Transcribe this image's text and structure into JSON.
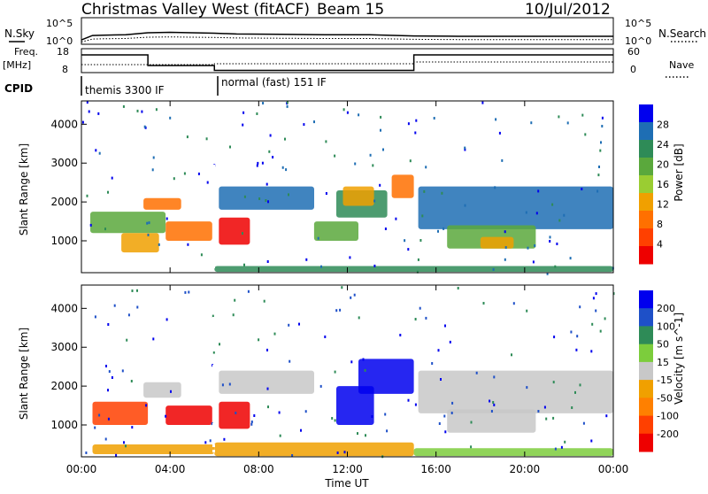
{
  "header": {
    "station": "Christmas Valley West (fitACF)",
    "beam": "Beam 15",
    "date": "10/Jul/2012"
  },
  "strip_labels": {
    "nsky": "N.Sky",
    "nsky_ticks": [
      "10^5",
      "10^0"
    ],
    "nsearch": "N.Search",
    "nsearch_ticks": [
      "10^5",
      "10^0"
    ],
    "freq": "Freq.",
    "freq_unit": "[MHz]",
    "freq_ticks": [
      "18",
      "8"
    ],
    "nave": "Nave",
    "nave_ticks": [
      "60",
      "0"
    ],
    "cpid": "CPID"
  },
  "cpid_segments": [
    {
      "label": "themis 3300 IF",
      "start_hour": 0,
      "end_hour": 6
    },
    {
      "label": "normal (fast) 151 IF",
      "start_hour": 6,
      "end_hour": 24
    }
  ],
  "colors": {
    "power": [
      "#0000ee",
      "#1e6eb4",
      "#2e8b57",
      "#5aa83c",
      "#9acd32",
      "#f0a000",
      "#ff7000",
      "#ff4000",
      "#ee0000"
    ],
    "velocity": [
      "#0000ee",
      "#1e50c8",
      "#2e8b57",
      "#7ccd3c",
      "#c8c8c8",
      "#f0a000",
      "#ff8000",
      "#ff4000",
      "#ee0000"
    ]
  },
  "chart_data": [
    {
      "type": "line",
      "name": "N.Sky",
      "x": [
        0,
        0.5,
        1,
        2,
        3,
        4,
        5,
        6,
        7,
        9,
        11,
        13,
        15,
        17,
        19,
        21,
        24
      ],
      "y_log10": [
        0.2,
        1.3,
        1.4,
        1.5,
        2.0,
        2.1,
        2.0,
        1.9,
        1.7,
        1.6,
        1.5,
        1.5,
        1.2,
        1.1,
        1.1,
        1.1,
        1.1
      ]
    },
    {
      "type": "line",
      "name": "Freq.",
      "x": [
        0,
        3,
        3,
        6,
        6,
        15,
        15,
        24
      ],
      "y": [
        15.5,
        15.5,
        10.5,
        10.5,
        8.2,
        8.2,
        15.5,
        15.5
      ]
    },
    {
      "type": "heatmap",
      "title": "Power",
      "xlabel": "Time UT",
      "ylabel": "Slant Range [km]",
      "colorbar_label": "Power [dB]",
      "colorbar_ticks": [
        28,
        24,
        20,
        16,
        12,
        8,
        4
      ],
      "x_ticks": [
        "00:00",
        "04:00",
        "08:00",
        "12:00",
        "16:00",
        "20:00",
        "00:00"
      ],
      "y_ticks": [
        1000,
        2000,
        3000,
        4000
      ],
      "xlim": [
        0,
        24
      ],
      "ylim": [
        180,
        4600
      ],
      "regions": [
        {
          "t0": 0.4,
          "t1": 3.8,
          "r0": 1200,
          "r1": 1750,
          "level": 3
        },
        {
          "t0": 2.8,
          "t1": 4.5,
          "r0": 1800,
          "r1": 2100,
          "level": 6
        },
        {
          "t0": 1.8,
          "t1": 3.5,
          "r0": 700,
          "r1": 1200,
          "level": 5
        },
        {
          "t0": 3.8,
          "t1": 5.9,
          "r0": 1000,
          "r1": 1500,
          "level": 6
        },
        {
          "t0": 6.2,
          "t1": 7.6,
          "r0": 900,
          "r1": 1600,
          "level": 8
        },
        {
          "t0": 6.2,
          "t1": 10.5,
          "r0": 1800,
          "r1": 2400,
          "level": 1
        },
        {
          "t0": 10.5,
          "t1": 12.5,
          "r0": 1000,
          "r1": 1500,
          "level": 3
        },
        {
          "t0": 11.5,
          "t1": 13.8,
          "r0": 1600,
          "r1": 2300,
          "level": 2
        },
        {
          "t0": 11.8,
          "t1": 13.2,
          "r0": 1900,
          "r1": 2400,
          "level": 5
        },
        {
          "t0": 14.0,
          "t1": 15.0,
          "r0": 2100,
          "r1": 2700,
          "level": 6
        },
        {
          "t0": 15.2,
          "t1": 24.0,
          "r0": 1300,
          "r1": 2400,
          "level": 1
        },
        {
          "t0": 16.5,
          "t1": 20.5,
          "r0": 800,
          "r1": 1400,
          "level": 3
        },
        {
          "t0": 18.0,
          "t1": 19.5,
          "r0": 800,
          "r1": 1100,
          "level": 5
        },
        {
          "t0": 6.0,
          "t1": 24.0,
          "r0": 200,
          "r1": 350,
          "level": 2
        }
      ]
    },
    {
      "type": "heatmap",
      "title": "Velocity",
      "xlabel": "Time UT",
      "ylabel": "Slant Range [km]",
      "colorbar_label": "Velocity [m s^-1]",
      "colorbar_ticks": [
        200,
        100,
        50,
        15,
        -15,
        -50,
        -100,
        -200
      ],
      "x_ticks": [
        "00:00",
        "04:00",
        "08:00",
        "12:00",
        "16:00",
        "20:00",
        "00:00"
      ],
      "y_ticks": [
        1000,
        2000,
        3000,
        4000
      ],
      "xlim": [
        0,
        24
      ],
      "ylim": [
        180,
        4600
      ],
      "regions": [
        {
          "t0": 0.5,
          "t1": 3.0,
          "r0": 1000,
          "r1": 1600,
          "level": 7
        },
        {
          "t0": 2.8,
          "t1": 4.5,
          "r0": 1700,
          "r1": 2100,
          "level": 4
        },
        {
          "t0": 3.8,
          "t1": 5.9,
          "r0": 1000,
          "r1": 1500,
          "level": 8
        },
        {
          "t0": 6.2,
          "t1": 7.6,
          "r0": 900,
          "r1": 1600,
          "level": 8
        },
        {
          "t0": 6.2,
          "t1": 10.5,
          "r0": 1800,
          "r1": 2400,
          "level": 4
        },
        {
          "t0": 11.5,
          "t1": 13.2,
          "r0": 1000,
          "r1": 2000,
          "level": 0
        },
        {
          "t0": 12.5,
          "t1": 15.0,
          "r0": 1800,
          "r1": 2700,
          "level": 0
        },
        {
          "t0": 15.2,
          "t1": 24.0,
          "r0": 1300,
          "r1": 2400,
          "level": 4
        },
        {
          "t0": 16.5,
          "t1": 20.5,
          "r0": 800,
          "r1": 1400,
          "level": 4
        },
        {
          "t0": 0.5,
          "t1": 6.0,
          "r0": 250,
          "r1": 500,
          "level": 5
        },
        {
          "t0": 6.0,
          "t1": 15.0,
          "r0": 200,
          "r1": 550,
          "level": 5
        },
        {
          "t0": 15.0,
          "t1": 24.0,
          "r0": 200,
          "r1": 400,
          "level": 3
        }
      ]
    }
  ]
}
